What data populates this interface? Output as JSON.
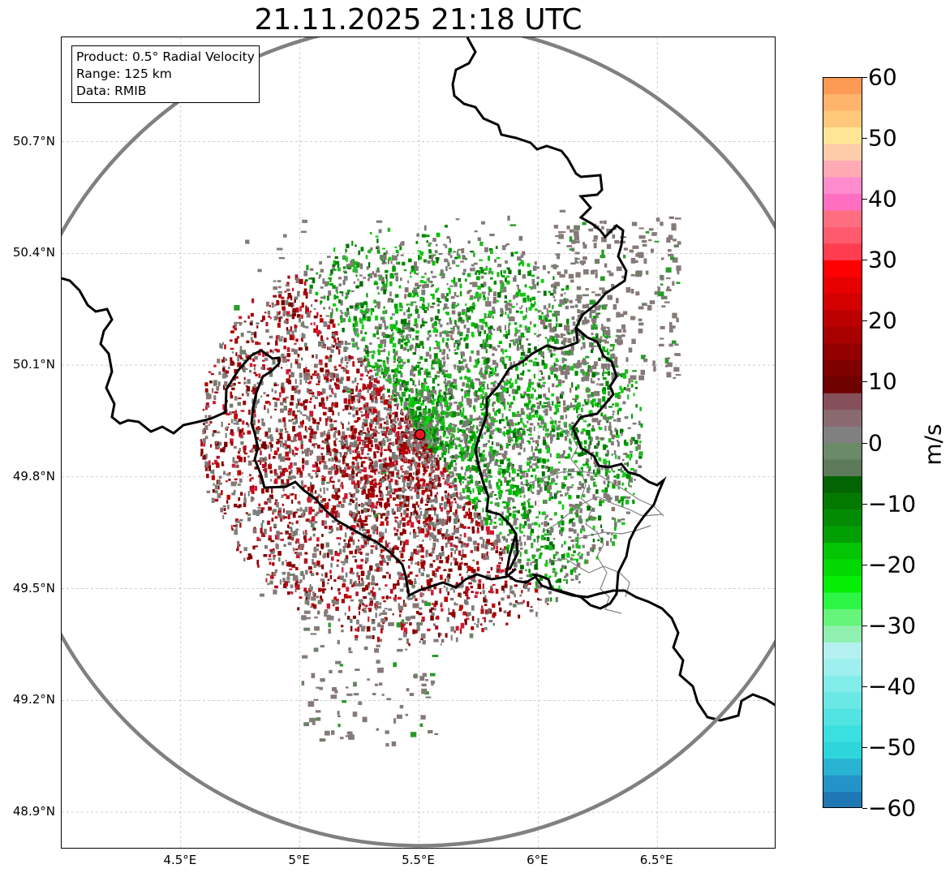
{
  "title": "21.11.2025 21:18 UTC",
  "info_box": {
    "product": "Product: 0.5° Radial Velocity",
    "range": "Range: 125 km",
    "data": "Data: RMIB"
  },
  "map": {
    "lon_range": [
      4.0,
      7.0
    ],
    "lat_range": [
      48.8,
      50.98
    ],
    "radar_site": {
      "lon": 5.505,
      "lat": 49.914
    },
    "range_ring_km": 125,
    "lat_ticks": [
      {
        "value": 50.7,
        "label": "50.7°N"
      },
      {
        "value": 50.4,
        "label": "50.4°N"
      },
      {
        "value": 50.1,
        "label": "50.1°N"
      },
      {
        "value": 49.8,
        "label": "49.8°N"
      },
      {
        "value": 49.5,
        "label": "49.5°N"
      },
      {
        "value": 49.2,
        "label": "49.2°N"
      },
      {
        "value": 48.9,
        "label": "48.9°N"
      }
    ],
    "lon_ticks": [
      {
        "value": 4.5,
        "label": "4.5°E"
      },
      {
        "value": 5.0,
        "label": "5°E"
      },
      {
        "value": 5.5,
        "label": "5.5°E"
      },
      {
        "value": 6.0,
        "label": "6°E"
      },
      {
        "value": 6.5,
        "label": "6.5°E"
      }
    ],
    "colors": {
      "border": "#000000",
      "range_ring": "#808080",
      "grid": "#b0b0b0",
      "radar_marker": "#e8191e",
      "admin_lines": "#808080"
    }
  },
  "colorbar": {
    "label": "m/s",
    "min": -60,
    "max": 60,
    "ticks": [
      {
        "value": 60,
        "label": "60"
      },
      {
        "value": 50,
        "label": "50"
      },
      {
        "value": 40,
        "label": "40"
      },
      {
        "value": 30,
        "label": "30"
      },
      {
        "value": 20,
        "label": "20"
      },
      {
        "value": 10,
        "label": "10"
      },
      {
        "value": 0,
        "label": "0"
      },
      {
        "value": -10,
        "label": "−10"
      },
      {
        "value": -20,
        "label": "−20"
      },
      {
        "value": -30,
        "label": "−30"
      },
      {
        "value": -40,
        "label": "−40"
      },
      {
        "value": -50,
        "label": "−50"
      },
      {
        "value": -60,
        "label": "−60"
      }
    ],
    "colors_bottom_to_top": [
      "#1f77b4",
      "#2494c8",
      "#29b3d3",
      "#2ed6dc",
      "#3ae0e0",
      "#52e4e2",
      "#6ae8e6",
      "#82eceb",
      "#9ef0ee",
      "#b4f0f0",
      "#90f0b0",
      "#66f57a",
      "#2cf546",
      "#05ef05",
      "#02d802",
      "#03c503",
      "#029f02",
      "#038c03",
      "#027a02",
      "#026402",
      "#5d7a5a",
      "#6a8a68",
      "#808080",
      "#8a6a70",
      "#85505a",
      "#6f0000",
      "#800000",
      "#930000",
      "#a80000",
      "#bc0000",
      "#d40000",
      "#e60000",
      "#ff0000",
      "#ff3c50",
      "#ff5a6e",
      "#ff6e80",
      "#ff6ec0",
      "#ff8ccc",
      "#ffaab4",
      "#ffccaa",
      "#ffe696",
      "#ffc87a",
      "#ffb46e",
      "#ff9a55"
    ]
  }
}
